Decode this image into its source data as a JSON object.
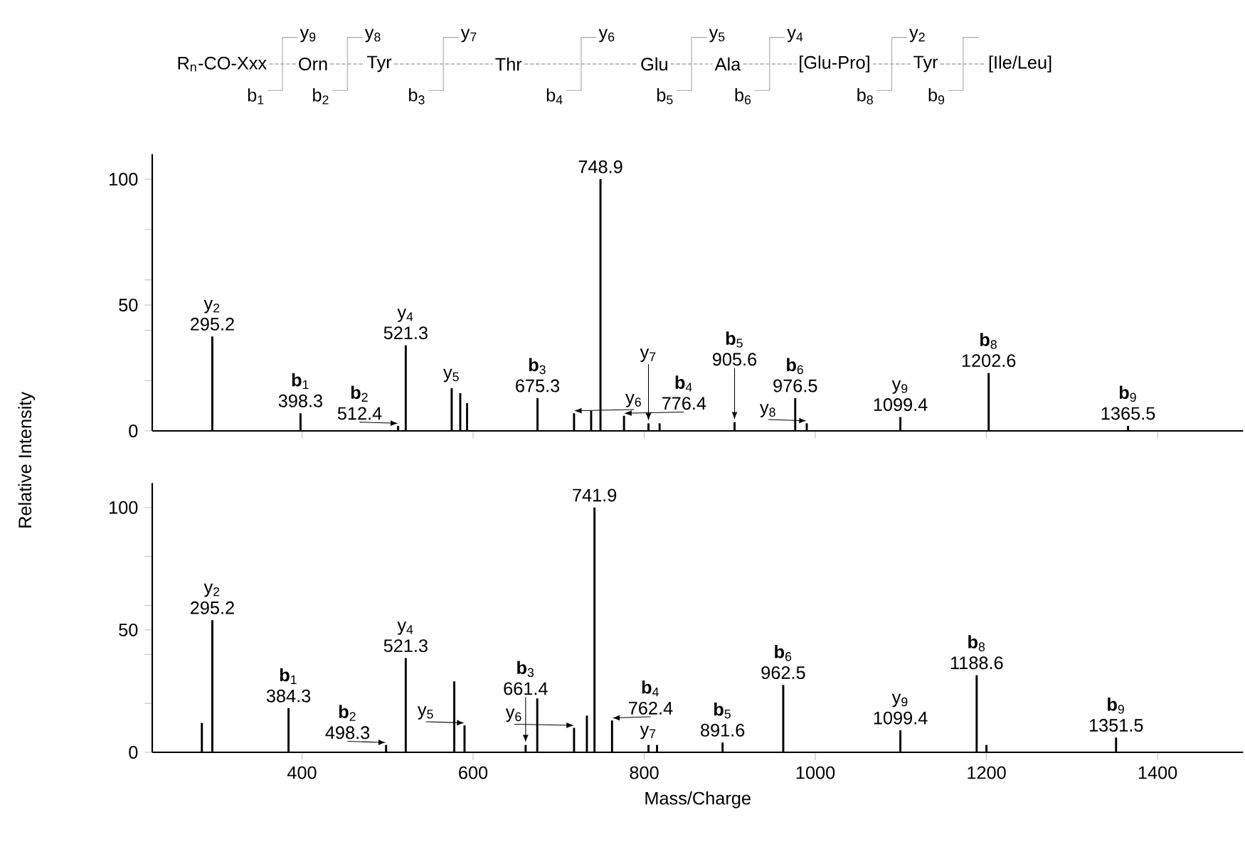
{
  "chart_data": [
    {
      "type": "other",
      "categories": [
        "R$_{n}$-CO-Xxx",
        "Orn",
        "Tyr",
        "Thr",
        "Glu",
        "Ala",
        "[Glu-Pro]",
        "Tyr",
        "[Ile/Leu]"
      ],
      "annotations": [
        "y$_{9}$",
        "y$_{8}$",
        "y$_{7}$",
        "y$_{6}$",
        "y$_{5}$",
        "y$_{4}$",
        "y$_{2}$",
        "b$_{1}$",
        "b$_{2}$",
        "b$_{3}$",
        "b$_{4}$",
        "b$_{5}$",
        "b$_{6}$",
        "b$_{8}$",
        "b$_{9}$"
      ]
    },
    {
      "type": "bar",
      "tick_labels": "y",
      "xlim": [
        225,
        1500
      ],
      "xticks": [
        400,
        600,
        800,
        1000,
        1200,
        1400
      ],
      "ylim": [
        0,
        110
      ],
      "yticks": [
        0,
        {
          "value": 20,
          "label": null
        },
        {
          "value": 40,
          "label": null
        },
        50,
        {
          "value": 60,
          "label": null
        },
        {
          "value": 80,
          "label": null
        },
        100
      ],
      "x": [
        295.2,
        398.3,
        512.4,
        521.3,
        575,
        585,
        593,
        675.3,
        718,
        738,
        748.9,
        776.4,
        805,
        818,
        905.6,
        976.5,
        990,
        1099.4,
        1202.6,
        1365.5
      ],
      "series": [
        {
          "color": "#000000",
          "values": [
            37.5,
            7,
            2,
            34,
            17,
            15,
            11,
            13,
            7,
            8,
            100,
            6,
            3,
            3,
            3.5,
            13,
            3,
            5.5,
            23,
            2
          ]
        }
      ],
      "annotations": [
        {
          "text": "y$_{2}$",
          "x": 295.2,
          "y": 37.5
        },
        {
          "text": "295.2",
          "x": 295.2,
          "y": 37.5
        },
        {
          "text": "**b**$_{1}$",
          "x": 398.3,
          "y": 7
        },
        {
          "text": "398.3",
          "x": 398.3,
          "y": 7
        },
        {
          "text": "**b**$_{2}$",
          "x": 512.4,
          "y": 2
        },
        {
          "text": "512.4",
          "x": 512.4,
          "y": 2
        },
        {
          "text": "y$_{4}$",
          "x": 521.3,
          "y": 34
        },
        {
          "text": "521.3",
          "x": 521.3,
          "y": 34
        },
        {
          "text": "y$_{5}$",
          "x": 575,
          "y": 17
        },
        {
          "text": "**b**$_{3}$",
          "x": 675.3,
          "y": 13
        },
        {
          "text": "675.3",
          "x": 675.3,
          "y": 13
        },
        {
          "text": "y$_{6}$",
          "x": 718,
          "y": 7
        },
        {
          "text": "748.9",
          "x": 748.9,
          "y": 100
        },
        {
          "text": "**b**$_{4}$",
          "x": 776.4,
          "y": 6
        },
        {
          "text": "776.4",
          "x": 776.4,
          "y": 6
        },
        {
          "text": "y$_{7}$",
          "x": 805,
          "y": 3
        },
        {
          "text": "**b**$_{5}$",
          "x": 905.6,
          "y": 3.5
        },
        {
          "text": "905.6",
          "x": 905.6,
          "y": 3.5
        },
        {
          "text": "**b**$_{6}$",
          "x": 976.5,
          "y": 13
        },
        {
          "text": "976.5",
          "x": 976.5,
          "y": 13
        },
        {
          "text": "y$_{8}$",
          "x": 990,
          "y": 3
        },
        {
          "text": "y$_{9}$",
          "x": 1099.4,
          "y": 5.5
        },
        {
          "text": "1099.4",
          "x": 1099.4,
          "y": 5.5
        },
        {
          "text": "**b**$_{8}$",
          "x": 1202.6,
          "y": 23
        },
        {
          "text": "1202.6",
          "x": 1202.6,
          "y": 23
        },
        {
          "text": "**b**$_{9}$",
          "x": 1365.5,
          "y": 2
        },
        {
          "text": "1365.5",
          "x": 1365.5,
          "y": 2
        }
      ]
    },
    {
      "type": "bar",
      "xlabel": "Mass/Charge",
      "ylabel": "Relative Intensity",
      "xlim": [
        225,
        1500
      ],
      "xticks": [
        400,
        600,
        800,
        1000,
        1200,
        1400
      ],
      "ylim": [
        0,
        110
      ],
      "yticks": [
        0,
        {
          "value": 20,
          "label": null
        },
        {
          "value": 40,
          "label": null
        },
        50,
        {
          "value": 60,
          "label": null
        },
        {
          "value": 80,
          "label": null
        },
        100
      ],
      "x": [
        283,
        295.2,
        384.3,
        498.3,
        521.3,
        578,
        590,
        661.4,
        675,
        718,
        733,
        741.9,
        762.4,
        805,
        815,
        891.6,
        962.5,
        1099.4,
        1188.6,
        1200,
        1351.5
      ],
      "series": [
        {
          "color": "#000000",
          "values": [
            12,
            54,
            18,
            3,
            38.5,
            29,
            11,
            3,
            22,
            10,
            15,
            100,
            13,
            3,
            3,
            4,
            27.5,
            9,
            31.5,
            3,
            6
          ]
        }
      ],
      "annotations": [
        {
          "text": "y$_{2}$",
          "x": 295.2,
          "y": 54
        },
        {
          "text": "295.2",
          "x": 295.2,
          "y": 54
        },
        {
          "text": "**b**$_{1}$",
          "x": 384.3,
          "y": 18
        },
        {
          "text": "384.3",
          "x": 384.3,
          "y": 18
        },
        {
          "text": "**b**$_{2}$",
          "x": 498.3,
          "y": 3
        },
        {
          "text": "498.3",
          "x": 498.3,
          "y": 3
        },
        {
          "text": "y$_{4}$",
          "x": 521.3,
          "y": 38.5
        },
        {
          "text": "521.3",
          "x": 521.3,
          "y": 38.5
        },
        {
          "text": "y$_{5}$",
          "x": 590,
          "y": 11
        },
        {
          "text": "**b**$_{3}$",
          "x": 661.4,
          "y": 3
        },
        {
          "text": "661.4",
          "x": 661.4,
          "y": 3
        },
        {
          "text": "y$_{6}$",
          "x": 718,
          "y": 10
        },
        {
          "text": "741.9",
          "x": 741.9,
          "y": 100
        },
        {
          "text": "**b**$_{4}$",
          "x": 762.4,
          "y": 13
        },
        {
          "text": "762.4",
          "x": 762.4,
          "y": 13
        },
        {
          "text": "y$_{7}$",
          "x": 805,
          "y": 3
        },
        {
          "text": "**b**$_{5}$",
          "x": 891.6,
          "y": 4
        },
        {
          "text": "891.6",
          "x": 891.6,
          "y": 4
        },
        {
          "text": "**b**$_{6}$",
          "x": 962.5,
          "y": 27.5
        },
        {
          "text": "962.5",
          "x": 962.5,
          "y": 27.5
        },
        {
          "text": "y$_{9}$",
          "x": 1099.4,
          "y": 9
        },
        {
          "text": "1099.4",
          "x": 1099.4,
          "y": 9
        },
        {
          "text": "**b**$_{8}$",
          "x": 1188.6,
          "y": 31.5
        },
        {
          "text": "1188.6",
          "x": 1188.6,
          "y": 31.5
        },
        {
          "text": "**b**$_{9}$",
          "x": 1351.5,
          "y": 6
        },
        {
          "text": "1351.5",
          "x": 1351.5,
          "y": 6
        }
      ]
    }
  ]
}
